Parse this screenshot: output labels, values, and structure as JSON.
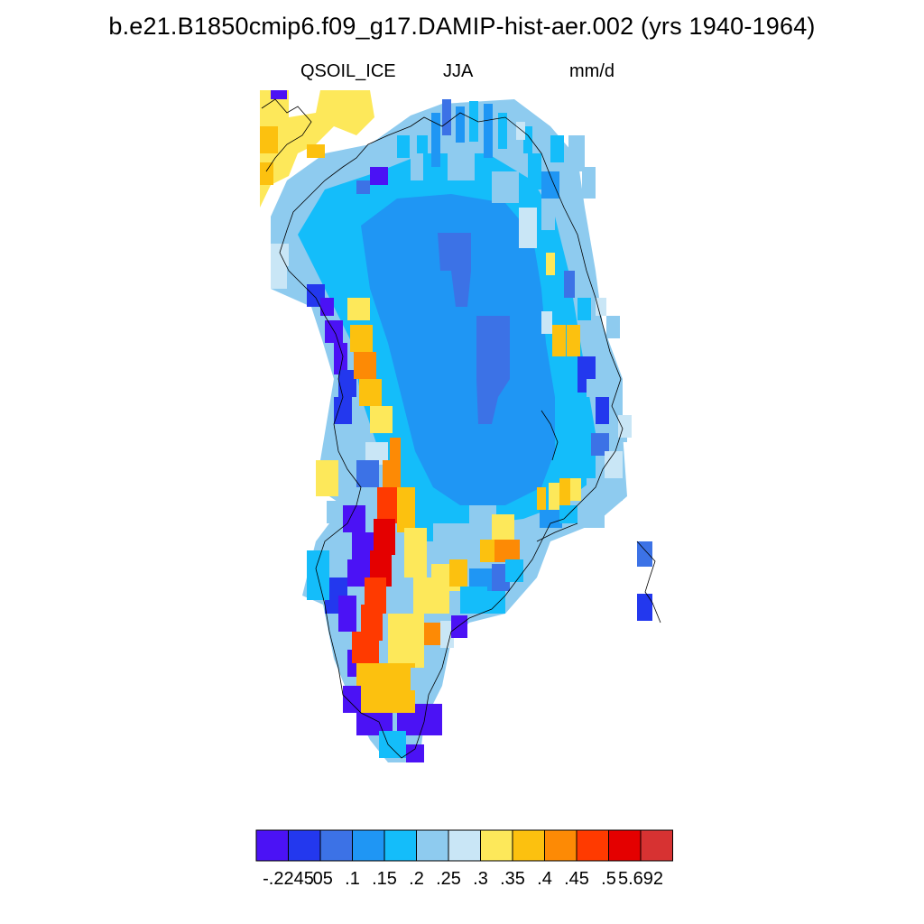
{
  "title": "b.e21.B1850cmip6.f09_g17.DAMIP-hist-aer.002 (yrs 1940-1964)",
  "subtitle": {
    "left": "QSOIL_ICE",
    "center": "JJA",
    "right": "mm/d"
  },
  "colorbar": {
    "colors": [
      "#4b12f5",
      "#2338ee",
      "#3c72e6",
      "#1f96f4",
      "#14bdfa",
      "#8ecbef",
      "#c9e6f6",
      "#fde85a",
      "#fcc10f",
      "#fd8a05",
      "#ff3a00",
      "#e40000",
      "#d73232"
    ],
    "labels": [
      "-.2245",
      ".05",
      ".1",
      ".15",
      ".2",
      ".25",
      ".3",
      ".35",
      ".4",
      ".45",
      ".5",
      "5.692"
    ]
  },
  "map": {
    "region": "Greenland",
    "field": "QSOIL_ICE",
    "season": "JJA",
    "units": "mm/d",
    "color_scale_levels": [
      "-.2245",
      ".05",
      ".1",
      ".15",
      ".2",
      ".25",
      ".3",
      ".35",
      ".4",
      ".45",
      ".5",
      "5.692"
    ],
    "dominant_interior_bin": ".15-.2",
    "maximum_region": "southwest coast",
    "maximum_bin": ".5-5.692"
  }
}
